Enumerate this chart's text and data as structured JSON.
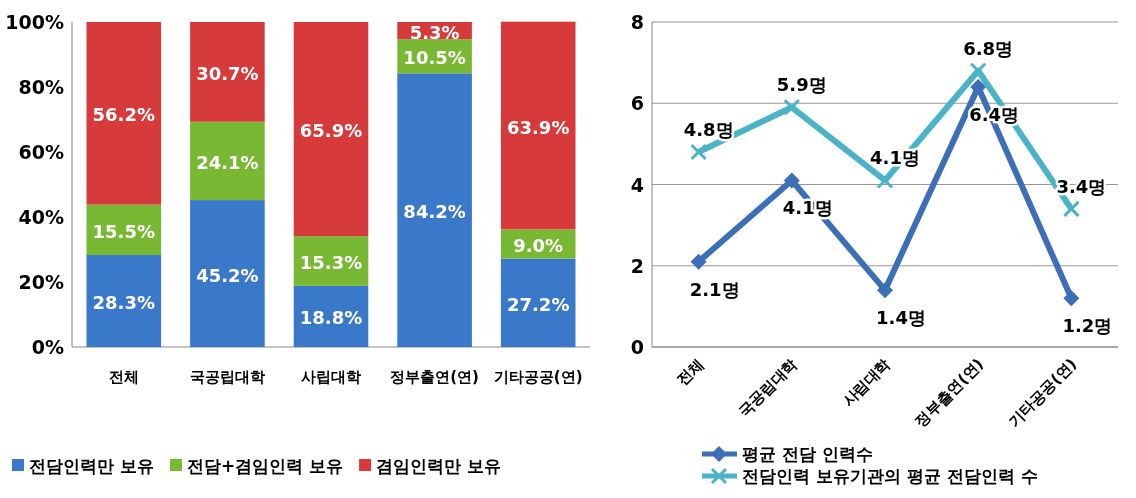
{
  "chart_data": [
    {
      "type": "bar",
      "stacked": true,
      "categories": [
        "전체",
        "국공립대학",
        "사립대학",
        "정부출연(연)",
        "기타공공(연)"
      ],
      "ylim": [
        0,
        100
      ],
      "yticks": [
        {
          "value": 0,
          "label": "0%"
        },
        {
          "value": 20,
          "label": "20%"
        },
        {
          "value": 40,
          "label": "40%"
        },
        {
          "value": 60,
          "label": "60%"
        },
        {
          "value": 80,
          "label": "80%"
        },
        {
          "value": 100,
          "label": "100%"
        }
      ],
      "legend": "bottom",
      "series": [
        {
          "name": "전담인력만 보유",
          "color": "#3a78c9",
          "values": [
            28.3,
            45.2,
            18.8,
            84.2,
            27.2
          ],
          "value_labels": [
            "28.3%",
            "45.2%",
            "18.8%",
            "84.2%",
            "27.2%"
          ]
        },
        {
          "name": "전담+겸임인력 보유",
          "color": "#79b833",
          "values": [
            15.5,
            24.1,
            15.3,
            10.5,
            9.0
          ],
          "value_labels": [
            "15.5%",
            "24.1%",
            "15.3%",
            "10.5%",
            "9.0%"
          ]
        },
        {
          "name": "겸임인력만 보유",
          "color": "#d63a3a",
          "values": [
            56.2,
            30.7,
            65.9,
            5.3,
            63.9
          ],
          "value_labels": [
            "56.2%",
            "30.7%",
            "65.9%",
            "5.3%",
            "63.9%"
          ]
        }
      ]
    },
    {
      "type": "line",
      "categories": [
        "전체",
        "국공립대학",
        "사립대학",
        "정부출연(연)",
        "기타공공(연)"
      ],
      "ylim": [
        0,
        8
      ],
      "yticks": [
        0,
        2,
        4,
        6,
        8
      ],
      "grid": "y",
      "legend": "bottom",
      "series": [
        {
          "name": "평균 전담 인력수",
          "color": "#3c6fb5",
          "marker": "diamond",
          "values": [
            2.1,
            4.1,
            1.4,
            6.4,
            1.2
          ],
          "value_labels": [
            "2.1명",
            "4.1명",
            "1.4명",
            "6.4명",
            "1.2명"
          ]
        },
        {
          "name": "전담인력 보유기관의 평균 전담인력 수",
          "color": "#4bb3c8",
          "marker": "cross",
          "values": [
            4.8,
            5.9,
            4.1,
            6.8,
            3.4
          ],
          "value_labels": [
            "4.8명",
            "5.9명",
            "4.1명",
            "6.8명",
            "3.4명"
          ]
        }
      ]
    }
  ]
}
